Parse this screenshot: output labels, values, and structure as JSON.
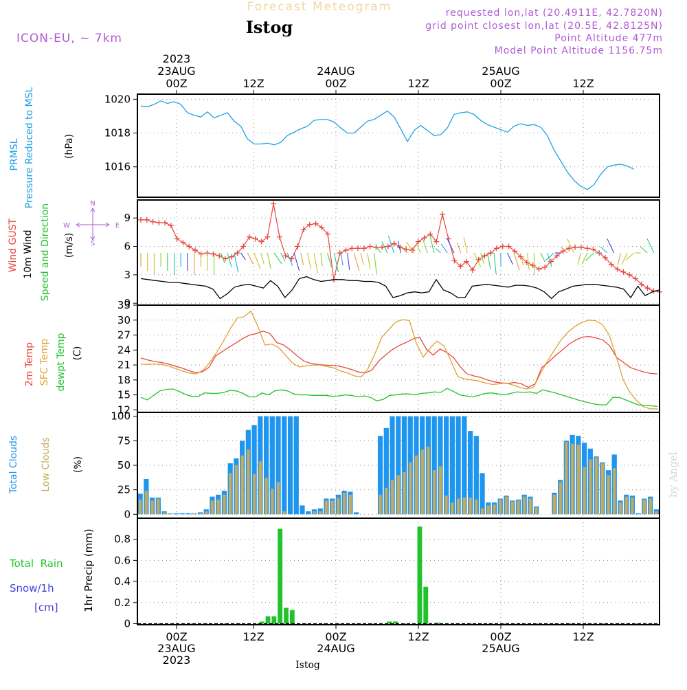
{
  "header": {
    "title": "Forecast Meteogram",
    "location": "Istog",
    "model": "ICON-EU, ~ 7km",
    "requested": "requested lon,lat (20.4911E, 42.7820N)",
    "grid_point": "grid point closest lon,lat (20.5E, 42.8125N)",
    "point_altitude": "Point Altitude 477m",
    "model_altitude": "Model Point Altitude 1156.75m",
    "watermark": "by Angel",
    "bottom_label": "Istog"
  },
  "time_axis": {
    "year": "2023",
    "start": "22AUG 18Z",
    "step_hours": 1,
    "ticks": [
      {
        "label": "00Z",
        "date": "23AUG",
        "year": "2023"
      },
      {
        "label": "12Z",
        "date": "",
        "year": ""
      },
      {
        "label": "00Z",
        "date": "24AUG",
        "year": ""
      },
      {
        "label": "12Z",
        "date": "",
        "year": ""
      },
      {
        "label": "00Z",
        "date": "25AUG",
        "year": ""
      },
      {
        "label": "12Z",
        "date": "",
        "year": ""
      }
    ]
  },
  "colors": {
    "pressure": "#1ea0e6",
    "gust": "#e8453c",
    "wind": "#000000",
    "temp2m": "#e8453c",
    "sfc": "#e0a030",
    "dewpt": "#22c32a",
    "total_clouds": "#1e96f0",
    "low_clouds": "#c8aa5a",
    "rain": "#22c32a",
    "snow": "#4040e0",
    "purple": "#b05ad6"
  },
  "panel_labels": {
    "pressure": {
      "a": "PRMSL",
      "b": "Pressure Reduced to MSL",
      "unit": "(hPa)"
    },
    "wind": {
      "a": "Wind GUST",
      "b": "10m Wind",
      "c": "Speed and Direction",
      "unit": "(m/s)",
      "compass_n": "N",
      "compass_s": "S",
      "compass_w": "W",
      "compass_e": "E"
    },
    "temp": {
      "a": "2m Temp",
      "b": "SFC Temp",
      "c": "dewpt Temp",
      "unit": "(C)"
    },
    "clouds": {
      "a": "Total Clouds",
      "b": "Low Clouds",
      "unit": "(%)"
    },
    "precip": {
      "a": "Total  Rain",
      "b": "Snow/1h",
      "c": "[cm]",
      "unit": "1hr Precip (mm)"
    }
  },
  "chart_data": [
    {
      "type": "line",
      "title": "PRMSL Pressure Reduced to MSL",
      "ylabel": "(hPa)",
      "ylim": [
        1014.2,
        1020.3
      ],
      "yticks": [
        1016,
        1018,
        1020
      ],
      "series": [
        {
          "name": "PRMSL",
          "values": [
            1019.6,
            1019.55,
            1019.7,
            1019.9,
            1019.75,
            1019.85,
            1019.7,
            1019.2,
            1019.05,
            1018.95,
            1019.25,
            1018.9,
            1019.05,
            1019.2,
            1018.7,
            1018.4,
            1017.65,
            1017.35,
            1017.35,
            1017.4,
            1017.3,
            1017.45,
            1017.85,
            1018.05,
            1018.25,
            1018.4,
            1018.75,
            1018.8,
            1018.8,
            1018.65,
            1018.3,
            1018.0,
            1018.0,
            1018.35,
            1018.7,
            1018.8,
            1019.05,
            1019.3,
            1018.95,
            1018.25,
            1017.5,
            1018.15,
            1018.45,
            1018.15,
            1017.85,
            1017.9,
            1018.3,
            1019.1,
            1019.2,
            1019.25,
            1019.1,
            1018.75,
            1018.5,
            1018.35,
            1018.2,
            1018.05,
            1018.4,
            1018.55,
            1018.45,
            1018.5,
            1018.35,
            1017.85,
            1017.0,
            1016.35,
            1015.7,
            1015.2,
            1014.85,
            1014.65,
            1014.95,
            1015.55,
            1016.0,
            1016.1,
            1016.15,
            1016.05,
            1015.85
          ]
        }
      ]
    },
    {
      "type": "line",
      "title": "Wind GUST / 10m Wind",
      "ylabel": "(m/s)",
      "ylim": [
        -0.2,
        10.9
      ],
      "yticks": [
        0,
        3,
        6,
        9
      ],
      "series": [
        {
          "name": "Wind GUST",
          "values": [
            8.8,
            8.8,
            8.6,
            8.5,
            8.5,
            8.2,
            6.8,
            6.4,
            6.0,
            5.6,
            5.2,
            5.3,
            5.2,
            5.0,
            4.7,
            4.9,
            5.3,
            6.0,
            7.0,
            6.8,
            6.5,
            7.0,
            10.5,
            7.0,
            5.0,
            4.7,
            6.0,
            7.8,
            8.3,
            8.4,
            8.0,
            7.3,
            2.5,
            5.3,
            5.6,
            5.8,
            5.8,
            5.8,
            6.0,
            5.9,
            5.9,
            6.0,
            6.3,
            5.9,
            5.7,
            5.6,
            6.5,
            6.9,
            7.3,
            6.5,
            9.4,
            6.8,
            4.5,
            3.9,
            4.4,
            3.5,
            4.6,
            5.0,
            5.3,
            5.8,
            6.0,
            6.0,
            5.5,
            4.9,
            4.3,
            4.0,
            3.6,
            3.8,
            4.4,
            5.0,
            5.5,
            5.8,
            5.9,
            5.9,
            5.8,
            5.7,
            5.3,
            4.8,
            4.1,
            3.6,
            3.3,
            3.0,
            2.6,
            2.0,
            1.6,
            1.3,
            1.2
          ]
        },
        {
          "name": "10m Wind",
          "values": [
            2.6,
            2.5,
            2.4,
            2.3,
            2.2,
            2.2,
            2.1,
            2.0,
            1.9,
            1.8,
            1.5,
            0.5,
            1.0,
            1.7,
            1.9,
            2.0,
            1.8,
            1.6,
            2.4,
            1.8,
            0.6,
            1.4,
            2.6,
            2.8,
            2.5,
            2.3,
            2.4,
            2.5,
            2.5,
            2.4,
            2.4,
            2.3,
            2.3,
            2.2,
            1.8,
            0.6,
            0.8,
            1.1,
            1.2,
            1.1,
            1.2,
            2.5,
            1.4,
            1.1,
            0.6,
            0.6,
            1.8,
            1.9,
            2.0,
            1.9,
            1.8,
            1.7,
            1.9,
            1.9,
            1.8,
            1.6,
            1.2,
            0.5,
            1.2,
            1.5,
            1.8,
            1.9,
            2.0,
            2.0,
            1.9,
            1.8,
            1.7,
            1.5,
            0.6,
            1.8,
            0.8,
            1.2,
            1.4
          ]
        }
      ]
    },
    {
      "type": "line",
      "title": "2m Temp / SFC Temp / dewpt Temp",
      "ylabel": "(C)",
      "ylim": [
        11.5,
        33.0
      ],
      "yticks": [
        12,
        15,
        18,
        21,
        24,
        27,
        30,
        33
      ],
      "series": [
        {
          "name": "2m Temp",
          "values": [
            22.4,
            22.0,
            21.7,
            21.5,
            21.2,
            20.8,
            20.4,
            19.9,
            19.5,
            19.6,
            20.5,
            22.8,
            23.7,
            24.6,
            25.4,
            26.3,
            27.0,
            27.3,
            27.8,
            27.3,
            25.5,
            25.0,
            24.0,
            22.8,
            21.8,
            21.3,
            21.1,
            21.0,
            20.9,
            20.8,
            20.5,
            20.1,
            19.6,
            19.4,
            20.0,
            21.8,
            23.0,
            24.1,
            24.9,
            25.5,
            26.2,
            26.6,
            24.2,
            23.0,
            24.2,
            23.5,
            22.5,
            20.6,
            19.2,
            18.8,
            18.5,
            18.0,
            17.6,
            17.4,
            17.3,
            17.5,
            17.2,
            16.5,
            17.2,
            20.5,
            21.6,
            22.9,
            24.0,
            25.2,
            26.0,
            26.6,
            26.7,
            26.4,
            26.0,
            24.8,
            22.5,
            21.5,
            20.5,
            20.0,
            19.6,
            19.3,
            19.2
          ]
        },
        {
          "name": "SFC Temp",
          "values": [
            21.2,
            21.1,
            21.2,
            21.1,
            20.8,
            20.3,
            19.8,
            19.4,
            19.2,
            19.9,
            21.5,
            23.5,
            25.8,
            28.3,
            30.4,
            30.7,
            31.8,
            28.7,
            25.0,
            25.2,
            24.5,
            23.0,
            21.4,
            20.6,
            20.8,
            21.0,
            21.0,
            20.7,
            20.4,
            19.8,
            19.4,
            18.8,
            18.6,
            20.3,
            23.3,
            26.6,
            28.1,
            29.6,
            30.1,
            29.9,
            25.3,
            22.6,
            24.4,
            25.8,
            24.8,
            21.9,
            18.7,
            18.2,
            18.0,
            17.8,
            17.4,
            17.1,
            17.2,
            17.4,
            17.0,
            16.5,
            16.2,
            16.5,
            19.2,
            21.7,
            23.9,
            26.0,
            27.6,
            28.7,
            29.5,
            30.0,
            29.9,
            29.1,
            27.0,
            22.8,
            18.1,
            15.5,
            13.8,
            12.6,
            12.2,
            12.2
          ]
        },
        {
          "name": "dewpt Temp",
          "values": [
            14.5,
            14.0,
            14.9,
            15.8,
            16.1,
            16.2,
            15.7,
            15.1,
            14.7,
            14.7,
            15.4,
            15.3,
            15.3,
            15.5,
            15.9,
            15.8,
            15.3,
            14.6,
            14.6,
            15.4,
            15.0,
            15.8,
            16.0,
            15.8,
            15.2,
            15.0,
            15.0,
            14.9,
            14.9,
            14.9,
            14.7,
            14.8,
            15.0,
            14.9,
            14.6,
            14.8,
            14.5,
            13.8,
            14.1,
            14.9,
            15.0,
            15.2,
            15.2,
            15.0,
            15.3,
            15.4,
            15.6,
            15.5,
            16.3,
            15.7,
            15.0,
            14.8,
            14.6,
            14.9,
            15.3,
            15.4,
            15.2,
            15.0,
            15.3,
            15.6,
            15.5,
            15.6,
            15.3,
            16.0,
            15.7,
            15.4,
            15.0,
            14.6,
            14.2,
            13.8,
            13.5,
            13.2,
            13.0,
            13.0,
            14.5,
            14.5,
            14.0,
            13.5,
            13.0,
            12.9,
            12.8,
            12.7
          ]
        }
      ]
    },
    {
      "type": "bar",
      "title": "Total Clouds / Low Clouds",
      "ylabel": "(%)",
      "ylim": [
        -4,
        104
      ],
      "yticks": [
        0,
        25,
        50,
        75,
        100
      ],
      "series": [
        {
          "name": "Total Clouds",
          "values": [
            21,
            36,
            17,
            17,
            3,
            1,
            1,
            1,
            1,
            1,
            2,
            5,
            18,
            20,
            24,
            52,
            57,
            75,
            86,
            91,
            100,
            100,
            100,
            100,
            100,
            100,
            100,
            9,
            3,
            5,
            6,
            16,
            16,
            20,
            24,
            23,
            2,
            0,
            0,
            0,
            80,
            88,
            100,
            100,
            100,
            100,
            100,
            100,
            100,
            100,
            100,
            100,
            100,
            100,
            100,
            85,
            80,
            42,
            12,
            12,
            16,
            19,
            14,
            15,
            20,
            18,
            8,
            0,
            0,
            22,
            35,
            75,
            81,
            80,
            73,
            67,
            59,
            53,
            45,
            61,
            14,
            20,
            19,
            1,
            16,
            18,
            5
          ]
        },
        {
          "name": "Low Clouds",
          "values": [
            15,
            24,
            14,
            16,
            2,
            1,
            0,
            0,
            0,
            1,
            1,
            3,
            14,
            15,
            20,
            42,
            50,
            60,
            66,
            41,
            54,
            37,
            26,
            33,
            3,
            0,
            0,
            0,
            0,
            3,
            3,
            14,
            14,
            17,
            22,
            20,
            0,
            0,
            0,
            0,
            20,
            27,
            35,
            40,
            43,
            53,
            60,
            66,
            69,
            45,
            49,
            19,
            12,
            16,
            17,
            17,
            15,
            6,
            9,
            10,
            15,
            18,
            13,
            14,
            18,
            16,
            7,
            0,
            0,
            20,
            33,
            74,
            72,
            71,
            48,
            56,
            58,
            52,
            40,
            47,
            12,
            18,
            17,
            0,
            15,
            16,
            3
          ]
        }
      ]
    },
    {
      "type": "bar",
      "title": "1hr Precip",
      "ylabel": "1hr Precip (mm)",
      "ylim": [
        -0.01,
        1.0
      ],
      "yticks": [
        0,
        0.2,
        0.4,
        0.6,
        0.8
      ],
      "series": [
        {
          "name": "Total Rain",
          "values": [
            0,
            0,
            0,
            0,
            0,
            0,
            0,
            0,
            0,
            0,
            0,
            0,
            0,
            0,
            0,
            0,
            0,
            0,
            0,
            0,
            0.02,
            0.07,
            0.07,
            0.9,
            0.15,
            0.13,
            0,
            0,
            0,
            0,
            0,
            0,
            0,
            0,
            0,
            0,
            0,
            0,
            0,
            0,
            0,
            0.02,
            0.02,
            0,
            0,
            0,
            0.92,
            0.35,
            0,
            0.01,
            0,
            0,
            0,
            0,
            0,
            0,
            0,
            0,
            0,
            0,
            0,
            0,
            0,
            0,
            0,
            0,
            0,
            0,
            0,
            0,
            0,
            0,
            0,
            0,
            0,
            0,
            0,
            0,
            0,
            0,
            0,
            0,
            0,
            0,
            0,
            0
          ]
        },
        {
          "name": "Snow/1h",
          "values": []
        }
      ]
    }
  ]
}
